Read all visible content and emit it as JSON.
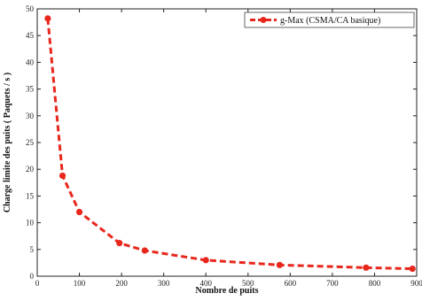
{
  "chart_data": {
    "type": "line",
    "xlabel": "Nombre de puits",
    "ylabel": "Charge  limite des puits ( Paquets / s )",
    "xlim": [
      0,
      900
    ],
    "ylim": [
      0,
      50
    ],
    "xticks": [
      0,
      100,
      200,
      300,
      400,
      500,
      600,
      700,
      800,
      900
    ],
    "yticks": [
      0,
      5,
      10,
      15,
      20,
      25,
      30,
      35,
      40,
      45,
      50
    ],
    "grid": false,
    "legend_position": "top-right",
    "series": [
      {
        "name": "g-Max (CSMA/CA basique)",
        "color": "#e8271c",
        "style": "dashed",
        "marker": "circle",
        "x": [
          25,
          60,
          100,
          195,
          255,
          400,
          575,
          780,
          890
        ],
        "y": [
          48.2,
          18.8,
          12.0,
          6.2,
          4.8,
          3.0,
          2.1,
          1.6,
          1.4
        ]
      }
    ]
  }
}
